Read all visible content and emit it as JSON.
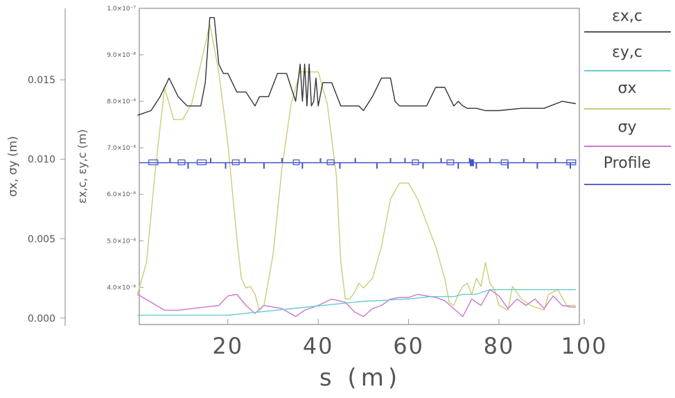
{
  "chart_data": {
    "type": "line",
    "xlabel": "s  (m)",
    "xlim": [
      0,
      100
    ],
    "x_ticks": [
      20,
      40,
      60,
      80,
      100
    ],
    "axes": {
      "left_outer": {
        "label": "σx, σy (m)",
        "ylim": [
          -0.0004,
          0.0195
        ],
        "ticks": [
          "0.000",
          "0.005",
          "0.010",
          "0.015"
        ]
      },
      "left_inner": {
        "label": "εx,c, εy,c (m)",
        "ylim": [
          3.2e-08,
          1e-07
        ],
        "ticks": [
          "4.0×10⁻⁸",
          "5.0×10⁻⁸",
          "6.0×10⁻⁸",
          "7.0×10⁻⁸",
          "8.0×10⁻⁸",
          "9.0×10⁻⁸",
          "1.0×10⁻⁷"
        ]
      }
    },
    "series": [
      {
        "name": "εx,c",
        "axis": "left_inner",
        "color": "#333333",
        "x": [
          0,
          3,
          5,
          7,
          9,
          11,
          14,
          15,
          16,
          17,
          18,
          19,
          20,
          22,
          24,
          26,
          27,
          29,
          31,
          33,
          35,
          36,
          36.5,
          37,
          37.5,
          38,
          38.5,
          39,
          39.5,
          40,
          41,
          43,
          45,
          47,
          49,
          50,
          52,
          54,
          56,
          57,
          58,
          60,
          62,
          64,
          66,
          68,
          70,
          71,
          72,
          73,
          75,
          77,
          80,
          85,
          90,
          94,
          97
        ],
        "y": [
          7.7e-08,
          7.8e-08,
          8.1e-08,
          8.5e-08,
          8.1e-08,
          7.9e-08,
          7.9e-08,
          8.4e-08,
          9.8e-08,
          9.8e-08,
          8.8e-08,
          8.6e-08,
          8.6e-08,
          8.2e-08,
          8.2e-08,
          7.9e-08,
          8.1e-08,
          8.1e-08,
          8.6e-08,
          8.6e-08,
          8e-08,
          8.8e-08,
          8e-08,
          8.8e-08,
          7.9e-08,
          8.8e-08,
          7.9e-08,
          8e-08,
          8.5e-08,
          7.9e-08,
          8.4e-08,
          8.4e-08,
          7.9e-08,
          7.9e-08,
          7.9e-08,
          7.8e-08,
          8.1e-08,
          8.5e-08,
          8.5e-08,
          8e-08,
          7.9e-08,
          7.9e-08,
          7.9e-08,
          7.9e-08,
          8.3e-08,
          8.3e-08,
          7.9e-08,
          8e-08,
          7.9e-08,
          7.85e-08,
          7.85e-08,
          7.8e-08,
          7.8e-08,
          7.85e-08,
          7.85e-08,
          8e-08,
          7.95e-08
        ]
      },
      {
        "name": "εy,c",
        "axis": "left_inner",
        "color": "#66cccc",
        "x": [
          0,
          5,
          10,
          15,
          20,
          25,
          30,
          35,
          40,
          45,
          50,
          55,
          60,
          65,
          70,
          72,
          75,
          78,
          80,
          85,
          90,
          95,
          97
        ],
        "y": [
          3.4e-08,
          3.4e-08,
          3.4e-08,
          3.4e-08,
          3.4e-08,
          3.45e-08,
          3.5e-08,
          3.55e-08,
          3.6e-08,
          3.65e-08,
          3.7e-08,
          3.72e-08,
          3.75e-08,
          3.8e-08,
          3.8e-08,
          3.85e-08,
          3.85e-08,
          3.95e-08,
          3.95e-08,
          3.95e-08,
          3.95e-08,
          3.95e-08,
          3.95e-08
        ]
      },
      {
        "name": "σx",
        "axis": "left_outer",
        "color": "#cccc77",
        "x": [
          0,
          2,
          4,
          6,
          8,
          10,
          12,
          14,
          16,
          18,
          20,
          22,
          23,
          24,
          25,
          26,
          27,
          28,
          30,
          32,
          34,
          36,
          38,
          40,
          42,
          44,
          45,
          46,
          47,
          48,
          49,
          50,
          52,
          54,
          56,
          58,
          60,
          62,
          64,
          66,
          68,
          69,
          70,
          71,
          72,
          73,
          74,
          75,
          76,
          77,
          78,
          79,
          80,
          82,
          83,
          85,
          87,
          90,
          91,
          93,
          95,
          97
        ],
        "y": [
          0.0015,
          0.0035,
          0.0095,
          0.0145,
          0.0125,
          0.0125,
          0.0135,
          0.016,
          0.0185,
          0.0155,
          0.011,
          0.005,
          0.0025,
          0.0019,
          0.002,
          0.0015,
          0.0005,
          0.0008,
          0.004,
          0.0095,
          0.0135,
          0.0155,
          0.0155,
          0.0155,
          0.0135,
          0.009,
          0.0035,
          0.0012,
          0.0012,
          0.0016,
          0.0022,
          0.0019,
          0.0025,
          0.0045,
          0.0075,
          0.0085,
          0.0085,
          0.0075,
          0.006,
          0.0045,
          0.0025,
          0.001,
          0.0008,
          0.0015,
          0.002,
          0.0022,
          0.0015,
          0.0025,
          0.002,
          0.0035,
          0.0022,
          0.0018,
          0.0008,
          0.0005,
          0.002,
          0.0012,
          0.0008,
          0.0005,
          0.0015,
          0.0018,
          0.0008,
          0.0008
        ]
      },
      {
        "name": "σy",
        "axis": "left_outer",
        "color": "#cc77cc",
        "x": [
          0,
          3,
          6,
          9,
          12,
          15,
          18,
          20,
          22,
          24,
          26,
          28,
          30,
          32,
          35,
          37,
          40,
          43,
          46,
          48,
          50,
          52,
          54,
          56,
          58,
          60,
          62,
          64,
          66,
          68,
          70,
          72,
          74,
          76,
          78,
          80,
          82,
          84,
          86,
          88,
          90,
          92,
          94,
          96,
          97
        ],
        "y": [
          0.0015,
          0.001,
          0.0005,
          0.0005,
          0.0006,
          0.0007,
          0.0008,
          0.0014,
          0.0015,
          0.0008,
          0.0003,
          0.0008,
          0.0007,
          0.0006,
          0.0001,
          0.0005,
          0.0008,
          0.0012,
          0.001,
          0.0004,
          0.0001,
          0.0006,
          0.0008,
          0.0012,
          0.0013,
          0.0013,
          0.0015,
          0.0014,
          0.0013,
          0.0011,
          0.0006,
          0.0001,
          0.0012,
          0.0008,
          0.0018,
          0.0014,
          0.0006,
          0.0012,
          0.0008,
          0.0012,
          0.0006,
          0.0014,
          0.0008,
          0.0007,
          0.0007
        ]
      }
    ],
    "legend": {
      "placement": "right",
      "entries": [
        {
          "label": "εx,c",
          "color": "#555555"
        },
        {
          "label": "εy,c",
          "color": "#66cccc"
        },
        {
          "label": "σx",
          "color": "#cccc77"
        },
        {
          "label": "σy",
          "color": "#cc77cc"
        },
        {
          "label": "Profile",
          "color": "#5566cc"
        }
      ]
    },
    "profile": {
      "name": "Profile",
      "color": "#4455cc",
      "baseline": 6.68e-08,
      "up_level": 6.78e-08,
      "down_level": 6.55e-08,
      "box_top": 6.74e-08,
      "spikes": [
        {
          "s": 7.2,
          "dir": "up"
        },
        {
          "s": 11.2,
          "dir": "down"
        },
        {
          "s": 16.2,
          "dir": "up"
        },
        {
          "s": 19.5,
          "dir": "down"
        },
        {
          "s": 23.8,
          "dir": "up"
        },
        {
          "s": 28,
          "dir": "down"
        },
        {
          "s": 32,
          "dir": "up"
        },
        {
          "s": 36.5,
          "dir": "down"
        },
        {
          "s": 40.5,
          "dir": "up"
        },
        {
          "s": 44.8,
          "dir": "down"
        },
        {
          "s": 48.2,
          "dir": "up"
        },
        {
          "s": 53,
          "dir": "down"
        },
        {
          "s": 56,
          "dir": "up"
        },
        {
          "s": 59.2,
          "dir": "up"
        },
        {
          "s": 63.2,
          "dir": "down"
        },
        {
          "s": 67.2,
          "dir": "up"
        },
        {
          "s": 71,
          "dir": "down"
        },
        {
          "s": 73.5,
          "dir": "up"
        },
        {
          "s": 75,
          "dir": "down"
        },
        {
          "s": 78,
          "dir": "up"
        },
        {
          "s": 82,
          "dir": "down"
        },
        {
          "s": 85.5,
          "dir": "up"
        },
        {
          "s": 88.5,
          "dir": "down"
        },
        {
          "s": 92.5,
          "dir": "up"
        },
        {
          "s": 95.8,
          "dir": "down"
        }
      ],
      "boxes": [
        [
          2.5,
          4.5
        ],
        [
          9,
          10.5
        ],
        [
          13.2,
          15.2
        ],
        [
          21,
          22.5
        ],
        [
          34.5,
          35.8
        ],
        [
          42,
          43.5
        ],
        [
          60.8,
          62.2
        ],
        [
          68.5,
          70
        ],
        [
          80.5,
          82
        ],
        [
          95,
          97
        ]
      ],
      "marker_s": 74
    }
  }
}
